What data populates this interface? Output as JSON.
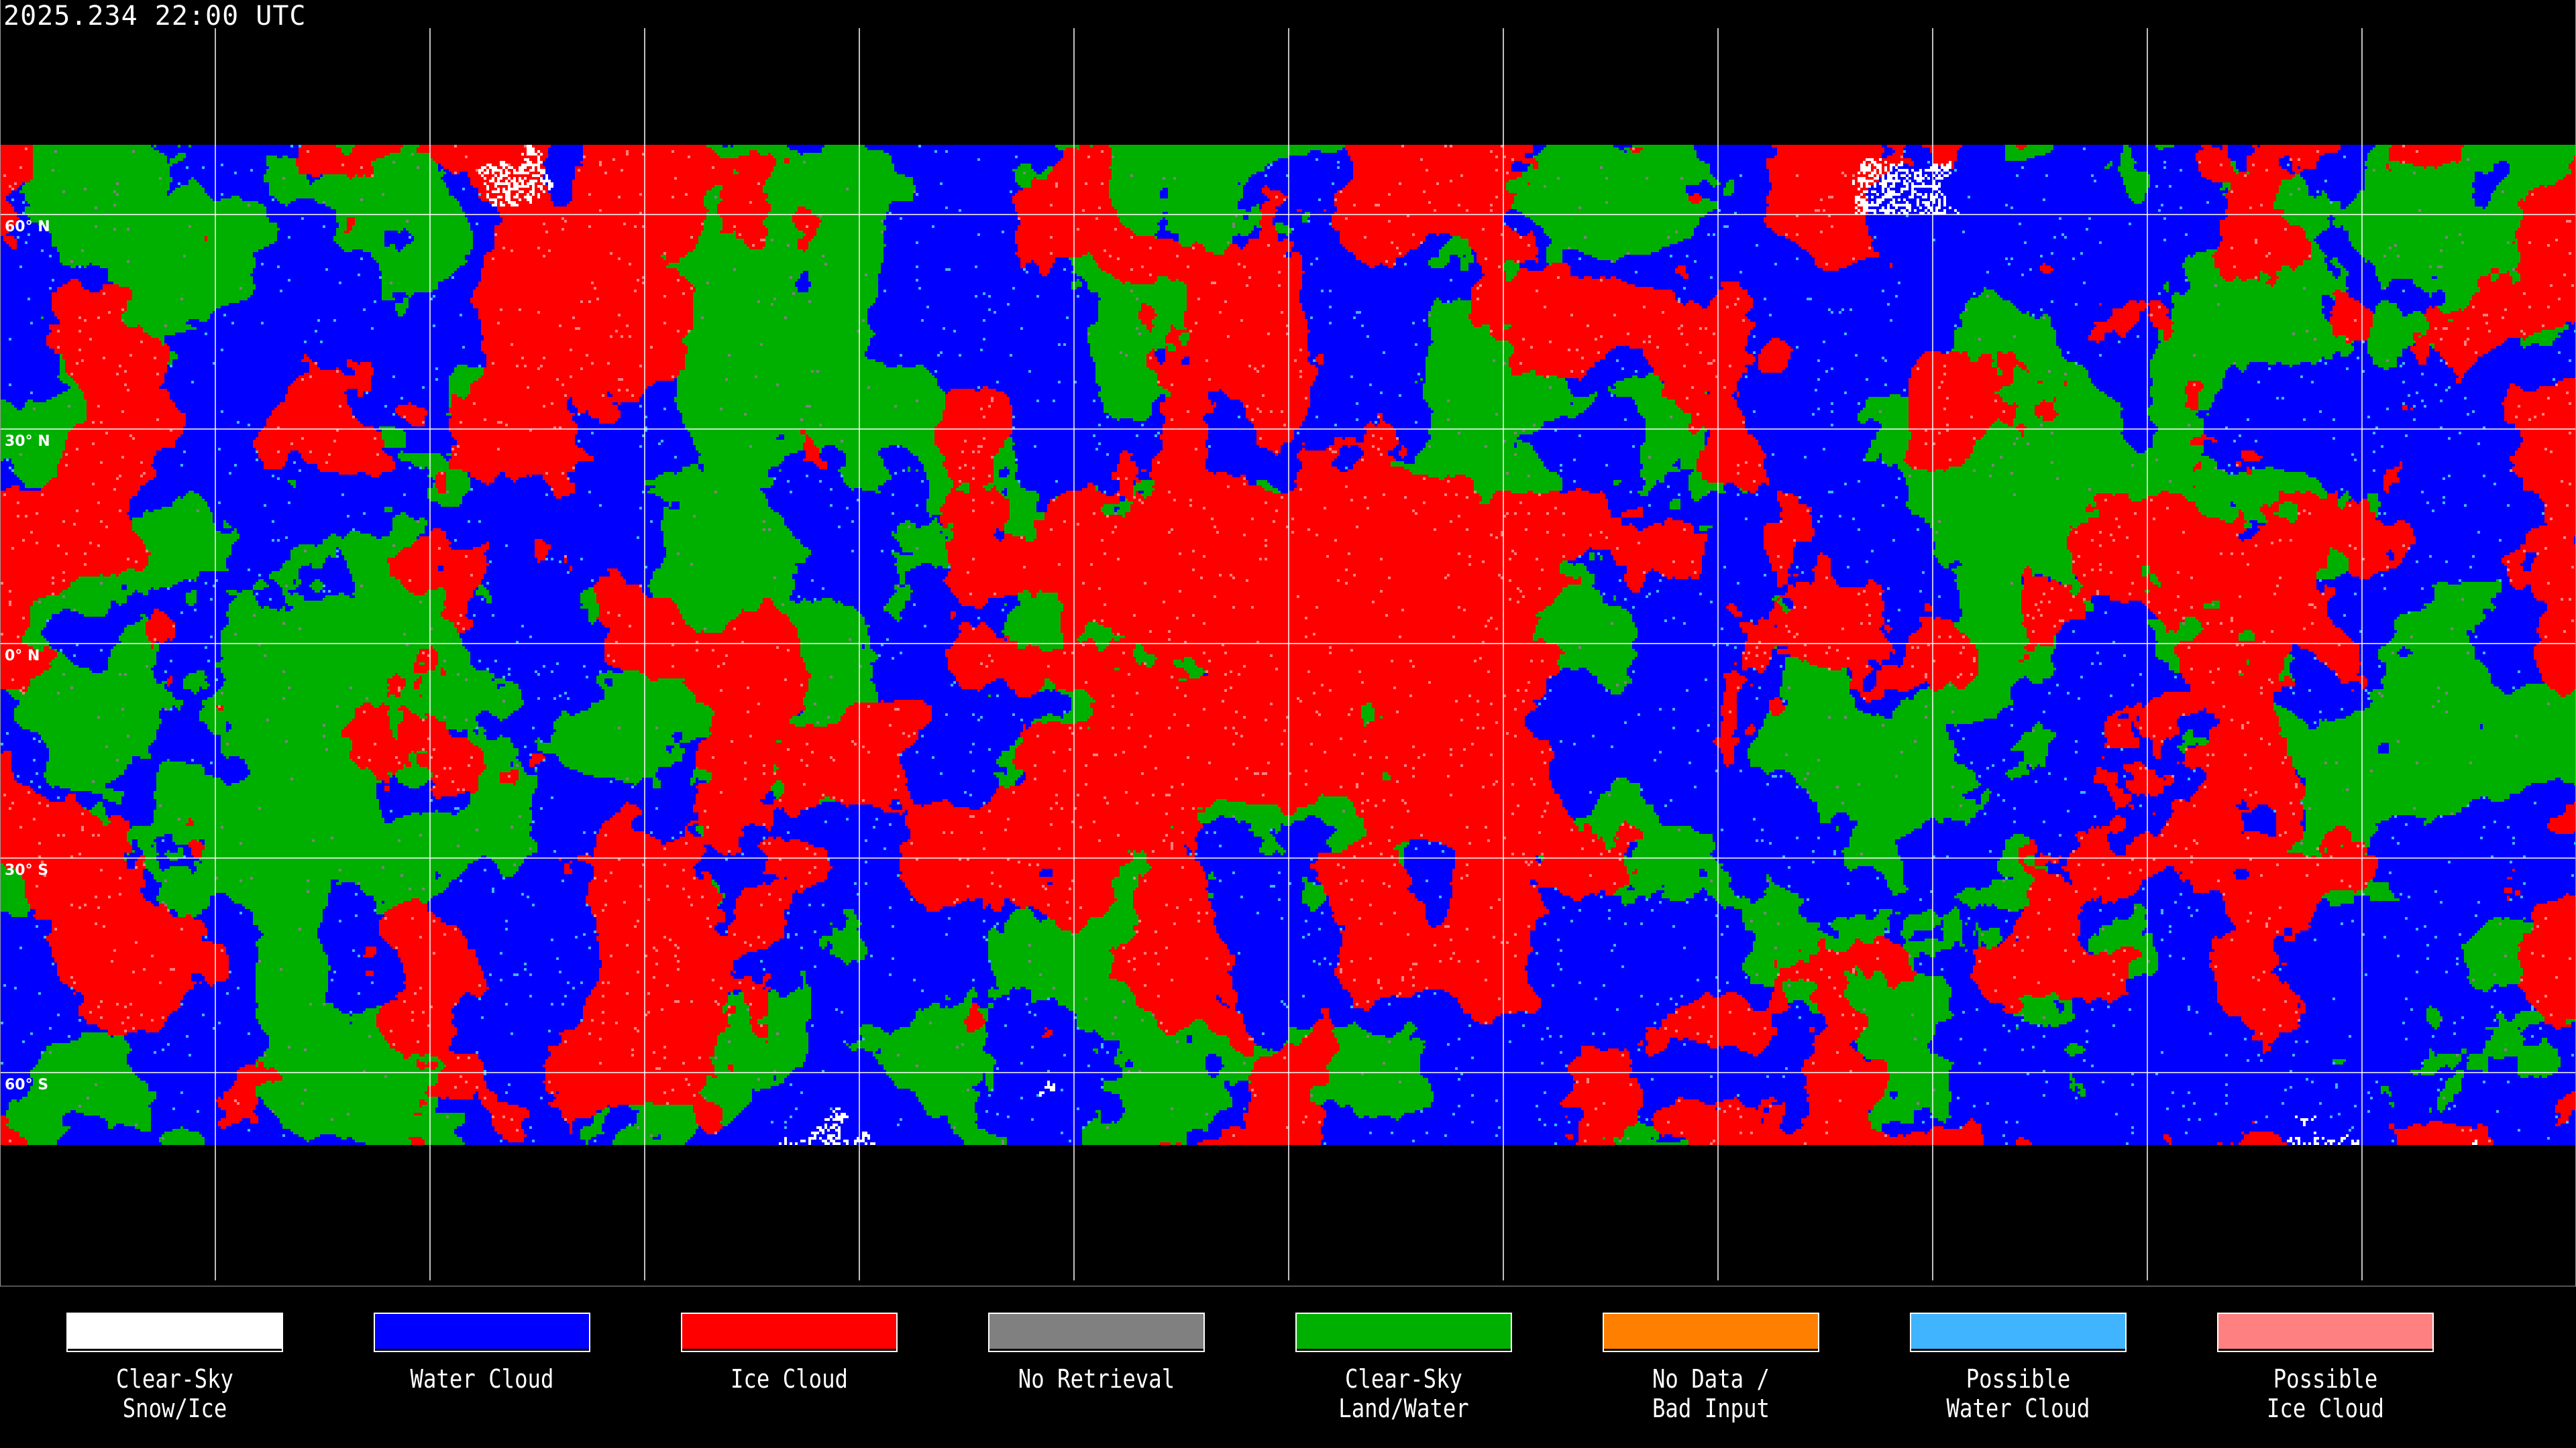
{
  "header": {
    "timestamp": "2025.234 22:00 UTC"
  },
  "map": {
    "projection": "equirectangular",
    "graticule_spacing_deg": 30,
    "lat_labels": [
      {
        "lat": 60,
        "text": "60° N"
      },
      {
        "lat": 30,
        "text": "30° N"
      },
      {
        "lat": 0,
        "text": "0° N"
      },
      {
        "lat": -30,
        "text": "30° S"
      },
      {
        "lat": -60,
        "text": "60° S"
      }
    ],
    "data_lat_extent": [
      70,
      -70
    ]
  },
  "legend": {
    "items": [
      {
        "label": "Clear-Sky\nSnow/Ice",
        "color": "#ffffff"
      },
      {
        "label": "Water Cloud",
        "color": "#0000ff"
      },
      {
        "label": "Ice Cloud",
        "color": "#ff0000"
      },
      {
        "label": "No Retrieval",
        "color": "#808080"
      },
      {
        "label": "Clear-Sky\nLand/Water",
        "color": "#00b000"
      },
      {
        "label": "No Data /\nBad Input",
        "color": "#ff8000"
      },
      {
        "label": "Possible\nWater Cloud",
        "color": "#40b4ff"
      },
      {
        "label": "Possible\nIce Cloud",
        "color": "#ff8080"
      }
    ]
  }
}
